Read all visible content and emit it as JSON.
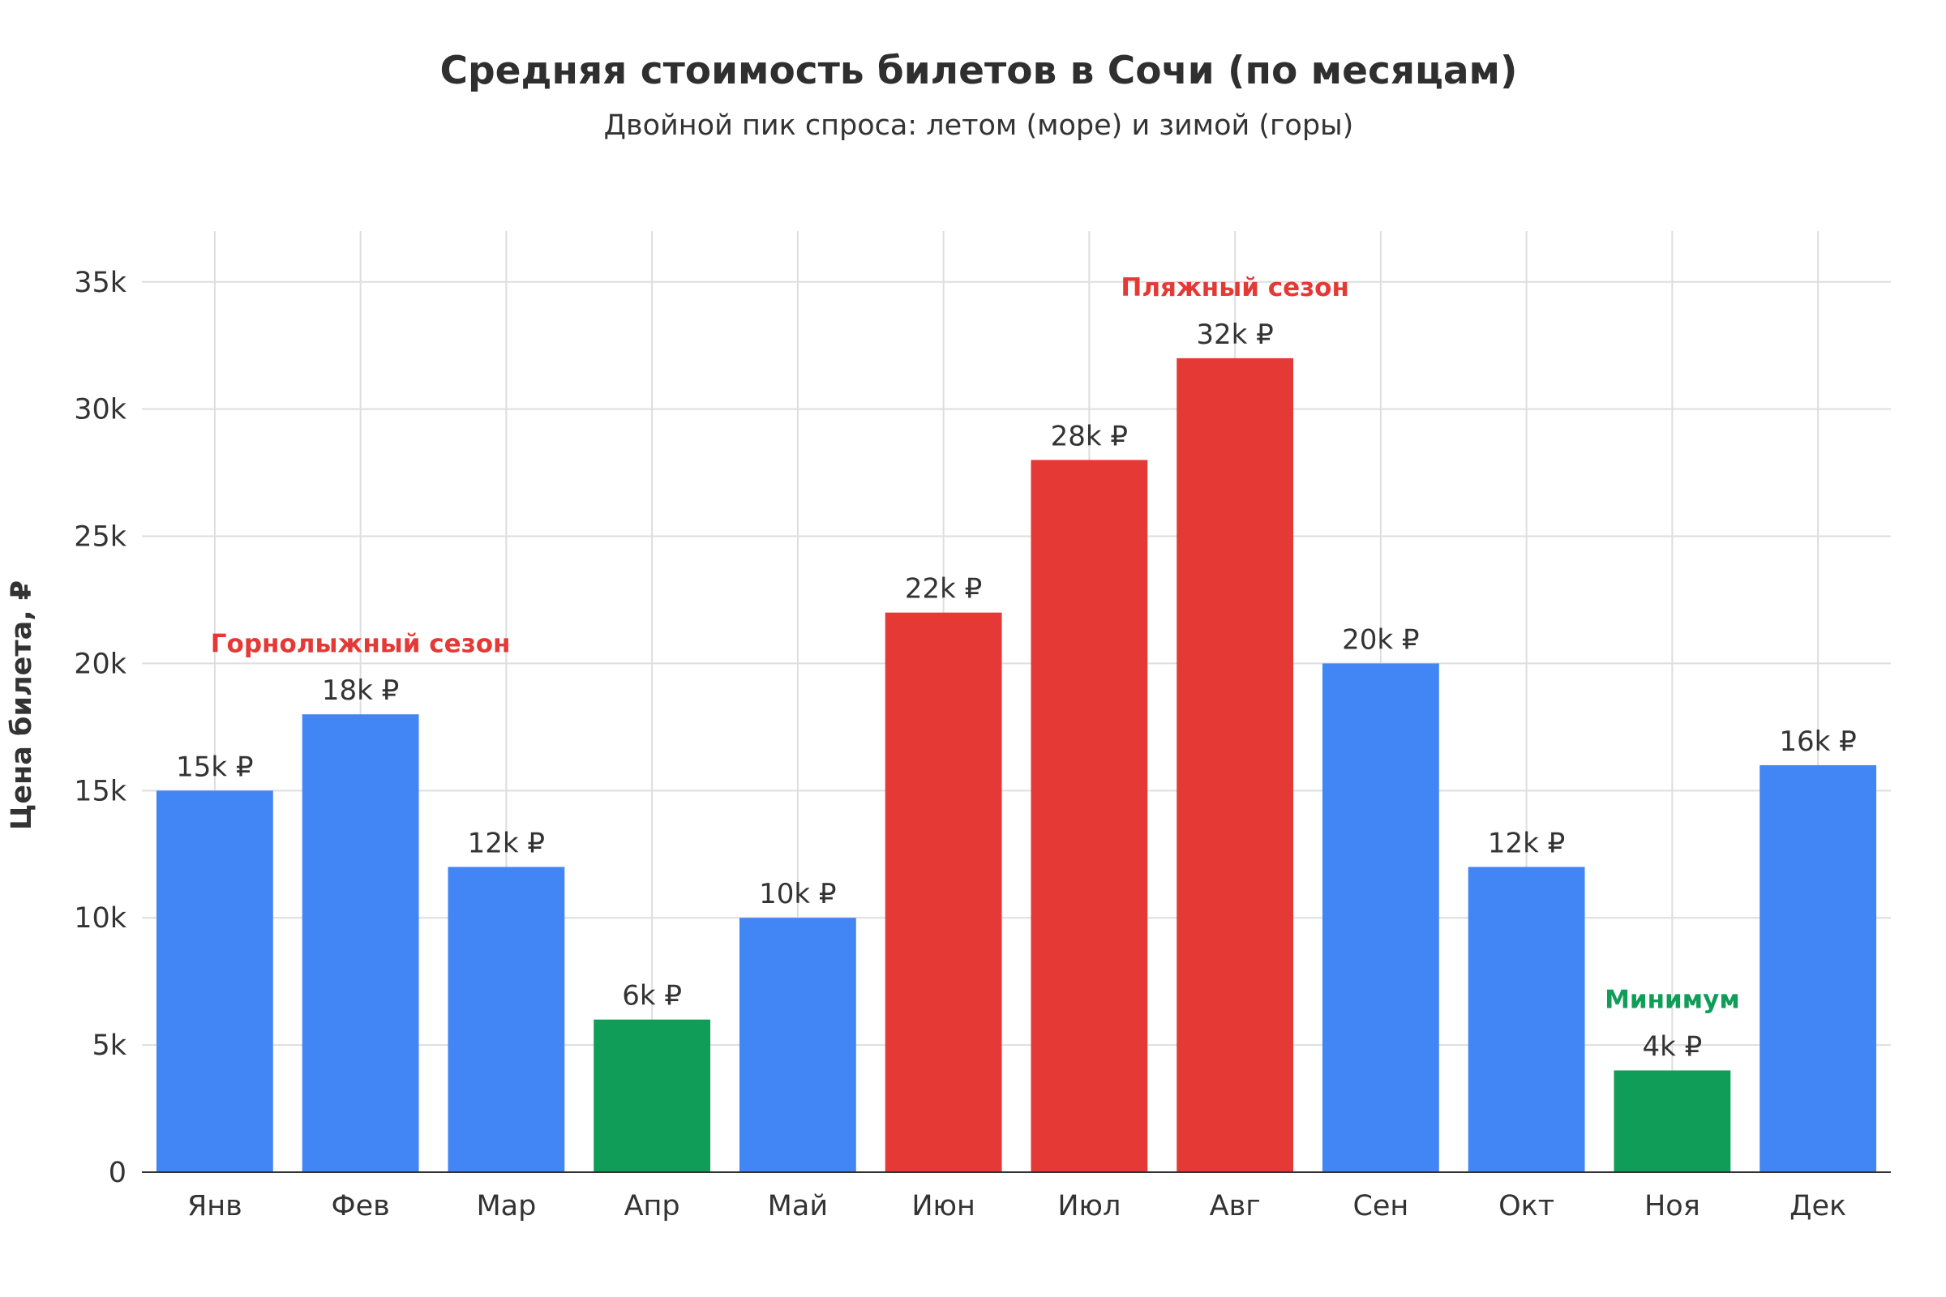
{
  "chart_data": {
    "type": "bar",
    "title": "Средняя стоимость билетов в Сочи (по месяцам)",
    "subtitle": "Двойной пик спроса: летом (море) и зимой (горы)",
    "ylabel": "Цена билета, ₽",
    "xlabel": "",
    "ylim": [
      0,
      37000
    ],
    "yticks": [
      0,
      5000,
      10000,
      15000,
      20000,
      25000,
      30000,
      35000
    ],
    "ytick_labels": [
      "0",
      "5k",
      "10k",
      "15k",
      "20k",
      "25k",
      "30k",
      "35k"
    ],
    "grid": true,
    "categories": [
      "Янв",
      "Фев",
      "Мар",
      "Апр",
      "Май",
      "Июн",
      "Июл",
      "Авг",
      "Сен",
      "Окт",
      "Ноя",
      "Дек"
    ],
    "values": [
      15000,
      18000,
      12000,
      6000,
      10000,
      22000,
      28000,
      32000,
      20000,
      12000,
      4000,
      16000
    ],
    "value_labels": [
      "15k ₽",
      "18k ₽",
      "12k ₽",
      "6k ₽",
      "10k ₽",
      "22k ₽",
      "28k ₽",
      "32k ₽",
      "20k ₽",
      "12k ₽",
      "4k ₽",
      "16k ₽"
    ],
    "bar_colors": [
      "#4285f4",
      "#4285f4",
      "#4285f4",
      "#0f9d58",
      "#4285f4",
      "#e53935",
      "#e53935",
      "#e53935",
      "#4285f4",
      "#4285f4",
      "#0f9d58",
      "#4285f4"
    ],
    "annotations": [
      {
        "text": "Горнолыжный сезон",
        "x_category": 1,
        "y": 20800,
        "color": "#e53935"
      },
      {
        "text": "Пляжный сезон",
        "x_category": 7,
        "y": 34800,
        "color": "#e53935"
      },
      {
        "text": "Минимум",
        "x_category": 10,
        "y": 6800,
        "color": "#0f9d58"
      }
    ]
  }
}
